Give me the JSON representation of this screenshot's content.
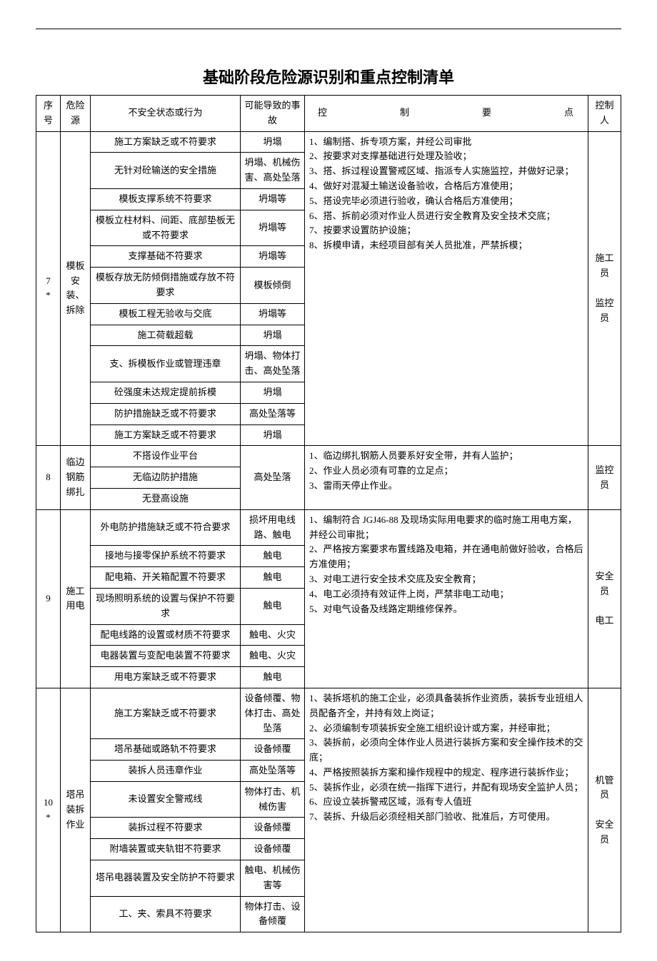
{
  "title": "基础阶段危险源识别和重点控制清单",
  "header": {
    "num": "序号",
    "source": "危险源",
    "state": "不安全状态或行为",
    "accident": "可能导致的事故",
    "control": "控 制 要 点",
    "resp": "控制人"
  },
  "g7": {
    "num": "7\n*",
    "source": "模板安装、拆除",
    "resp": "施工员\n\n监控员",
    "control": "1、编制搭、拆专项方案，并经公司审批\n2、按要求对支撑基础进行处理及验收；\n3、搭、拆过程设置警戒区域、指派专人实施监控，并做好记录；\n4、做好对混凝土输送设备验收，合格后方准使用；\n5、搭设完毕必须进行验收，确认合格后方准使用；\n6、搭、拆前必须对作业人员进行安全教育及安全技术交底；\n7、按要求设置防护设施；\n8、拆模申请，未经项目部有关人员批准，严禁拆模；",
    "rows": [
      {
        "state": "施工方案缺乏或不符要求",
        "acc": "坍塌"
      },
      {
        "state": "无针对砼输送的安全措施",
        "acc": "坍塌、机械伤害、高处坠落"
      },
      {
        "state": "模板支撑系统不符要求",
        "acc": "坍塌等"
      },
      {
        "state": "模板立柱材料、间距、底部垫板无或不符要求",
        "acc": "坍塌等"
      },
      {
        "state": "支撑基础不符要求",
        "acc": "坍塌等"
      },
      {
        "state": "模板存放无防倾倒措施或存放不符要求",
        "acc": "模板倾倒"
      },
      {
        "state": "模板工程无验收与交底",
        "acc": "坍塌等"
      },
      {
        "state": "施工荷载超载",
        "acc": "坍塌"
      },
      {
        "state": "支、拆模板作业或管理违章",
        "acc": "坍塌、物体打击、高处坠落"
      },
      {
        "state": "砼强度未达规定提前拆模",
        "acc": "坍塌"
      },
      {
        "state": "防护措施缺乏或不符要求",
        "acc": "高处坠落等"
      },
      {
        "state": "施工方案缺乏或不符要求",
        "acc": "坍塌"
      }
    ]
  },
  "g8": {
    "num": "8",
    "source": "临边钢筋绑扎",
    "resp": "监控员",
    "acc": "高处坠落",
    "control": "1、临边绑扎钢筋人员要系好安全带，并有人监护；\n2、作业人员必须有可靠的立足点；\n3、雷雨天停止作业。",
    "rows": [
      {
        "state": "不搭设作业平台"
      },
      {
        "state": "无临边防护措施"
      },
      {
        "state": "无登高设施"
      }
    ]
  },
  "g9": {
    "num": "9",
    "source": "施工用电",
    "resp": "安全员\n\n电工",
    "control": "1、编制符合 JGJ46-88 及现场实际用电要求的临时施工用电方案，并经公司审批；\n2、严格按方案要求布置线路及电箱，并在通电前做好验收，合格后方准使用；\n3、对电工进行安全技术交底及安全教育；\n4、电工必须持有效证件上岗，严禁非电工动电；\n5、对电气设备及线路定期维修保养。",
    "rows": [
      {
        "state": "外电防护措施缺乏或不符合要求",
        "acc": "损坏用电线路、触电"
      },
      {
        "state": "接地与接零保护系统不符要求",
        "acc": "触电"
      },
      {
        "state": "配电箱、开关箱配置不符要求",
        "acc": "触电"
      },
      {
        "state": "现场照明系统的设置与保护不符要求",
        "acc": "触电"
      },
      {
        "state": "配电线路的设置或材质不符要求",
        "acc": "触电、火灾"
      },
      {
        "state": "电器装置与变配电装置不符要求",
        "acc": "触电、火灾"
      },
      {
        "state": "用电方案缺乏或不符要求",
        "acc": "触电"
      }
    ]
  },
  "g10": {
    "num": "10\n*",
    "source": "塔吊装拆作业",
    "resp": "机管员\n\n安全员",
    "control": "1、装拆塔机的施工企业，必须具备装拆作业资质，装拆专业班组人员配备齐全，并持有效上岗证；\n2、必须编制专项装拆安全施工组织设计或方案，并经审批；\n3、装拆前，必须向全体作业人员进行装拆方案和安全操作技术的交底；\n4、严格按照装拆方案和操作规程中的规定、程序进行装拆作业；\n5、装拆作业，必须在统一指挥下进行，并配有现场安全监护人员；\n6、应设立装拆警戒区域，派有专人值班\n7、装拆、升级后必须经相关部门验收、批准后，方可使用。",
    "rows": [
      {
        "state": "施工方案缺乏或不符要求",
        "acc": "设备倾覆、物体打击、高处坠落"
      },
      {
        "state": "塔吊基础或路轨不符要求",
        "acc": "设备倾覆"
      },
      {
        "state": "装拆人员违章作业",
        "acc": "高处坠落等"
      },
      {
        "state": "未设置安全警戒线",
        "acc": "物体打击、机械伤害"
      },
      {
        "state": "装拆过程不符要求",
        "acc": "设备倾覆"
      },
      {
        "state": "附墙装置或夹轨钳不符要求",
        "acc": "设备倾覆"
      },
      {
        "state": "塔吊电器装置及安全防护不符要求",
        "acc": "触电、机械伤害等"
      },
      {
        "state": "工、夹、索具不符要求",
        "acc": "物体打击、设备倾覆"
      }
    ]
  }
}
